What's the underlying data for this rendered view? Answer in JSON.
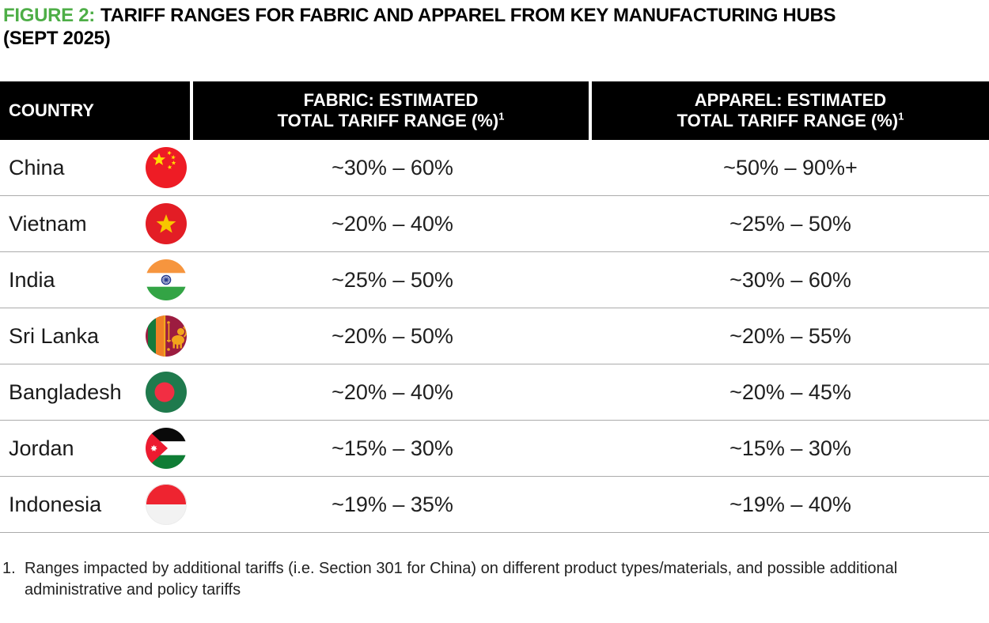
{
  "colors": {
    "accent_green": "#4EAE47",
    "header_bg": "#000000",
    "header_text": "#FFFFFF",
    "row_divider": "#ABABAB",
    "body_text": "#1A1A1A"
  },
  "title": {
    "prefix": "FIGURE 2:",
    "line1": "TARIFF RANGES FOR FABRIC AND APPAREL FROM KEY MANUFACTURING HUBS",
    "line2": "(SEPT 2025)"
  },
  "table": {
    "header": {
      "country": "COUNTRY",
      "fabric_line1": "FABRIC: ESTIMATED",
      "fabric_line2": "TOTAL TARIFF RANGE (%)",
      "fabric_sup": "1",
      "apparel_line1": "APPAREL: ESTIMATED",
      "apparel_line2": "TOTAL TARIFF RANGE (%)",
      "apparel_sup": "1"
    },
    "rows": [
      {
        "country": "China",
        "flag_icon": "china-flag-icon",
        "fabric": "~30% – 60%",
        "apparel": "~50% – 90%+"
      },
      {
        "country": "Vietnam",
        "flag_icon": "vietnam-flag-icon",
        "fabric": "~20% – 40%",
        "apparel": "~25% – 50%"
      },
      {
        "country": "India",
        "flag_icon": "india-flag-icon",
        "fabric": "~25% – 50%",
        "apparel": "~30% – 60%"
      },
      {
        "country": "Sri Lanka",
        "flag_icon": "sri-lanka-flag-icon",
        "fabric": "~20% – 50%",
        "apparel": "~20% – 55%"
      },
      {
        "country": "Bangladesh",
        "flag_icon": "bangladesh-flag-icon",
        "fabric": "~20% – 40%",
        "apparel": "~20% – 45%"
      },
      {
        "country": "Jordan",
        "flag_icon": "jordan-flag-icon",
        "fabric": "~15% – 30%",
        "apparel": "~15% – 30%"
      },
      {
        "country": "Indonesia",
        "flag_icon": "indonesia-flag-icon",
        "fabric": "~19% – 35%",
        "apparel": "~19% – 40%"
      }
    ]
  },
  "footnote": {
    "marker": "1.",
    "text": "Ranges impacted by additional tariffs (i.e. Section 301 for China) on different product types/materials, and possible additional administrative and policy tariffs"
  },
  "chart_data": {
    "type": "table",
    "title": "FIGURE 2: TARIFF RANGES FOR FABRIC AND APPAREL FROM KEY MANUFACTURING HUBS (SEPT 2025)",
    "columns": [
      "COUNTRY",
      "FABRIC: ESTIMATED TOTAL TARIFF RANGE (%)¹",
      "APPAREL: ESTIMATED TOTAL TARIFF RANGE (%)¹"
    ],
    "rows": [
      [
        "China",
        "~30% – 60%",
        "~50% – 90%+"
      ],
      [
        "Vietnam",
        "~20% – 40%",
        "~25% – 50%"
      ],
      [
        "India",
        "~25% – 50%",
        "~30% – 60%"
      ],
      [
        "Sri Lanka",
        "~20% – 50%",
        "~20% – 55%"
      ],
      [
        "Bangladesh",
        "~20% – 40%",
        "~20% – 45%"
      ],
      [
        "Jordan",
        "~15% – 30%",
        "~15% – 30%"
      ],
      [
        "Indonesia",
        "~19% – 35%",
        "~19% – 40%"
      ]
    ],
    "footnote": "1. Ranges impacted by additional tariffs (i.e. Section 301 for China) on different product types/materials, and possible additional administrative and policy tariffs"
  }
}
